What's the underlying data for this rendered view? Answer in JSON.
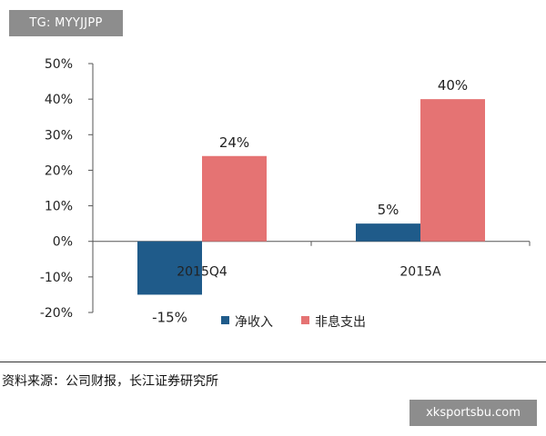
{
  "tag": "TG: MYYJJPP",
  "watermark": "xksportsbu.com",
  "source": "资料来源：公司财报，长江证券研究所",
  "colors": {
    "net_income": "#1f5b8a",
    "non_interest_expense": "#e57373",
    "axis": "#555555"
  },
  "chart_data": {
    "type": "bar",
    "categories": [
      "2015Q4",
      "2015A"
    ],
    "series": [
      {
        "name": "净收入",
        "values": [
          -15,
          5
        ],
        "color": "#1f5b8a",
        "labels": [
          "-15%",
          "5%"
        ]
      },
      {
        "name": "非息支出",
        "values": [
          24,
          40
        ],
        "color": "#e57373",
        "labels": [
          "24%",
          "40%"
        ]
      }
    ],
    "ylim": [
      -20,
      50
    ],
    "yticks": [
      -20,
      -10,
      0,
      10,
      20,
      30,
      40,
      50
    ],
    "ytick_labels": [
      "-20%",
      "-10%",
      "0%",
      "10%",
      "20%",
      "30%",
      "40%",
      "50%"
    ],
    "title": "",
    "xlabel": "",
    "ylabel": "",
    "legend": "bottom-right",
    "grid": false
  }
}
